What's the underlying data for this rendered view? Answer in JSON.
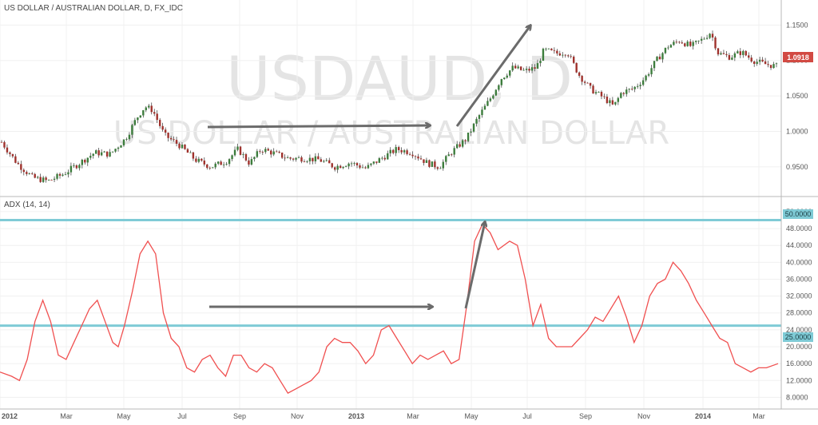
{
  "chart_data": [
    {
      "type": "candlestick",
      "title": "US DOLLAR / AUSTRALIAN DOLLAR, D, FX_IDC",
      "watermark": "USDAUD, D",
      "watermark_sub": "US DOLLAR / AUSTRALIAN DOLLAR",
      "ylim": [
        0.915,
        1.165
      ],
      "y_ticks": [
        "1.1500",
        "1.1000",
        "1.0500",
        "1.0000",
        "0.9500"
      ],
      "y_tick_values": [
        1.15,
        1.1,
        1.05,
        1.0,
        0.95
      ],
      "last_price": "1.0918",
      "last_price_value": 1.0918,
      "bull_color": "#3d7d3d",
      "bear_color": "#a0322d",
      "price_path": [
        [
          0.0,
          0.985
        ],
        [
          0.02,
          0.955
        ],
        [
          0.04,
          0.935
        ],
        [
          0.06,
          0.93
        ],
        [
          0.08,
          0.94
        ],
        [
          0.1,
          0.955
        ],
        [
          0.12,
          0.97
        ],
        [
          0.14,
          0.968
        ],
        [
          0.16,
          0.99
        ],
        [
          0.175,
          1.02
        ],
        [
          0.185,
          1.035
        ],
        [
          0.195,
          1.03
        ],
        [
          0.21,
          0.995
        ],
        [
          0.23,
          0.98
        ],
        [
          0.25,
          0.96
        ],
        [
          0.27,
          0.95
        ],
        [
          0.29,
          0.958
        ],
        [
          0.305,
          0.975
        ],
        [
          0.32,
          0.955
        ],
        [
          0.335,
          0.975
        ],
        [
          0.35,
          0.97
        ],
        [
          0.37,
          0.962
        ],
        [
          0.39,
          0.962
        ],
        [
          0.41,
          0.96
        ],
        [
          0.43,
          0.95
        ],
        [
          0.45,
          0.956
        ],
        [
          0.47,
          0.948
        ],
        [
          0.49,
          0.962
        ],
        [
          0.51,
          0.975
        ],
        [
          0.53,
          0.97
        ],
        [
          0.55,
          0.955
        ],
        [
          0.565,
          0.95
        ],
        [
          0.58,
          0.97
        ],
        [
          0.6,
          0.99
        ],
        [
          0.615,
          1.02
        ],
        [
          0.63,
          1.045
        ],
        [
          0.645,
          1.075
        ],
        [
          0.66,
          1.09
        ],
        [
          0.675,
          1.085
        ],
        [
          0.69,
          1.09
        ],
        [
          0.7,
          1.115
        ],
        [
          0.715,
          1.11
        ],
        [
          0.73,
          1.112
        ],
        [
          0.745,
          1.08
        ],
        [
          0.76,
          1.06
        ],
        [
          0.78,
          1.045
        ],
        [
          0.79,
          1.035
        ],
        [
          0.8,
          1.055
        ],
        [
          0.815,
          1.06
        ],
        [
          0.83,
          1.075
        ],
        [
          0.845,
          1.1
        ],
        [
          0.86,
          1.12
        ],
        [
          0.875,
          1.128
        ],
        [
          0.89,
          1.12
        ],
        [
          0.905,
          1.13
        ],
        [
          0.915,
          1.14
        ],
        [
          0.925,
          1.11
        ],
        [
          0.94,
          1.105
        ],
        [
          0.955,
          1.112
        ],
        [
          0.97,
          1.1
        ],
        [
          0.985,
          1.095
        ],
        [
          1.0,
          1.0918
        ]
      ],
      "annotations": [
        "arrow-horizontal",
        "arrow-up"
      ]
    },
    {
      "type": "line",
      "title": "ADX (14, 14)",
      "ylim": [
        6,
        53.5
      ],
      "y_ticks": [
        "52.0000",
        "48.0000",
        "44.0000",
        "40.0000",
        "36.0000",
        "32.0000",
        "28.0000",
        "24.0000",
        "20.0000",
        "16.0000",
        "12.0000",
        "8.0000"
      ],
      "y_tick_values": [
        52,
        48,
        44,
        40,
        36,
        32,
        28,
        24,
        20,
        16,
        12,
        8
      ],
      "levels": [
        {
          "label": "50.0000",
          "value": 50,
          "color": "#7fcbd6"
        },
        {
          "label": "25.0000",
          "value": 25,
          "color": "#7fcbd6"
        }
      ],
      "line_color": "#f05050",
      "series": [
        {
          "values": [
            [
              0.0,
              14
            ],
            [
              0.015,
              13
            ],
            [
              0.025,
              12
            ],
            [
              0.035,
              17
            ],
            [
              0.045,
              26
            ],
            [
              0.055,
              31
            ],
            [
              0.065,
              26
            ],
            [
              0.075,
              18
            ],
            [
              0.085,
              17
            ],
            [
              0.095,
              21
            ],
            [
              0.105,
              25
            ],
            [
              0.115,
              29
            ],
            [
              0.125,
              31
            ],
            [
              0.135,
              26
            ],
            [
              0.145,
              21
            ],
            [
              0.152,
              20
            ],
            [
              0.16,
              25
            ],
            [
              0.17,
              33
            ],
            [
              0.18,
              42
            ],
            [
              0.19,
              45
            ],
            [
              0.2,
              42
            ],
            [
              0.21,
              28
            ],
            [
              0.22,
              22
            ],
            [
              0.23,
              20
            ],
            [
              0.24,
              15
            ],
            [
              0.25,
              14
            ],
            [
              0.26,
              17
            ],
            [
              0.27,
              18
            ],
            [
              0.28,
              15
            ],
            [
              0.29,
              13
            ],
            [
              0.3,
              18
            ],
            [
              0.31,
              18
            ],
            [
              0.32,
              15
            ],
            [
              0.33,
              14
            ],
            [
              0.34,
              16
            ],
            [
              0.35,
              15
            ],
            [
              0.36,
              12
            ],
            [
              0.37,
              9
            ],
            [
              0.38,
              10
            ],
            [
              0.39,
              11
            ],
            [
              0.4,
              12
            ],
            [
              0.41,
              14
            ],
            [
              0.42,
              20
            ],
            [
              0.43,
              22
            ],
            [
              0.44,
              21
            ],
            [
              0.45,
              21
            ],
            [
              0.46,
              19
            ],
            [
              0.47,
              16
            ],
            [
              0.48,
              18
            ],
            [
              0.49,
              24
            ],
            [
              0.5,
              25
            ],
            [
              0.51,
              22
            ],
            [
              0.52,
              19
            ],
            [
              0.53,
              16
            ],
            [
              0.54,
              18
            ],
            [
              0.55,
              17
            ],
            [
              0.56,
              18
            ],
            [
              0.57,
              19
            ],
            [
              0.58,
              16
            ],
            [
              0.59,
              17
            ],
            [
              0.6,
              30
            ],
            [
              0.61,
              45
            ],
            [
              0.62,
              49
            ],
            [
              0.63,
              47
            ],
            [
              0.64,
              43
            ],
            [
              0.655,
              45
            ],
            [
              0.665,
              44
            ],
            [
              0.675,
              36
            ],
            [
              0.685,
              25
            ],
            [
              0.695,
              30
            ],
            [
              0.705,
              22
            ],
            [
              0.715,
              20
            ],
            [
              0.725,
              20
            ],
            [
              0.735,
              20
            ],
            [
              0.745,
              22
            ],
            [
              0.755,
              24
            ],
            [
              0.765,
              27
            ],
            [
              0.775,
              26
            ],
            [
              0.785,
              29
            ],
            [
              0.795,
              32
            ],
            [
              0.805,
              27
            ],
            [
              0.815,
              21
            ],
            [
              0.825,
              25
            ],
            [
              0.835,
              32
            ],
            [
              0.845,
              35
            ],
            [
              0.855,
              36
            ],
            [
              0.865,
              40
            ],
            [
              0.875,
              38
            ],
            [
              0.885,
              35
            ],
            [
              0.895,
              31
            ],
            [
              0.905,
              28
            ],
            [
              0.915,
              25
            ],
            [
              0.925,
              22
            ],
            [
              0.935,
              21
            ],
            [
              0.945,
              16
            ],
            [
              0.955,
              15
            ],
            [
              0.965,
              14
            ],
            [
              0.975,
              15
            ],
            [
              0.985,
              15
            ],
            [
              1.0,
              16
            ]
          ]
        }
      ],
      "annotations": [
        "arrow-horizontal",
        "arrow-up"
      ]
    }
  ],
  "x_axis": {
    "ticks": [
      "2012",
      "Mar",
      "May",
      "Jul",
      "Sep",
      "Nov",
      "2013",
      "Mar",
      "May",
      "Jul",
      "Sep",
      "Nov",
      "2014",
      "Mar"
    ],
    "bold": [
      "2012",
      "2013",
      "2014"
    ]
  }
}
